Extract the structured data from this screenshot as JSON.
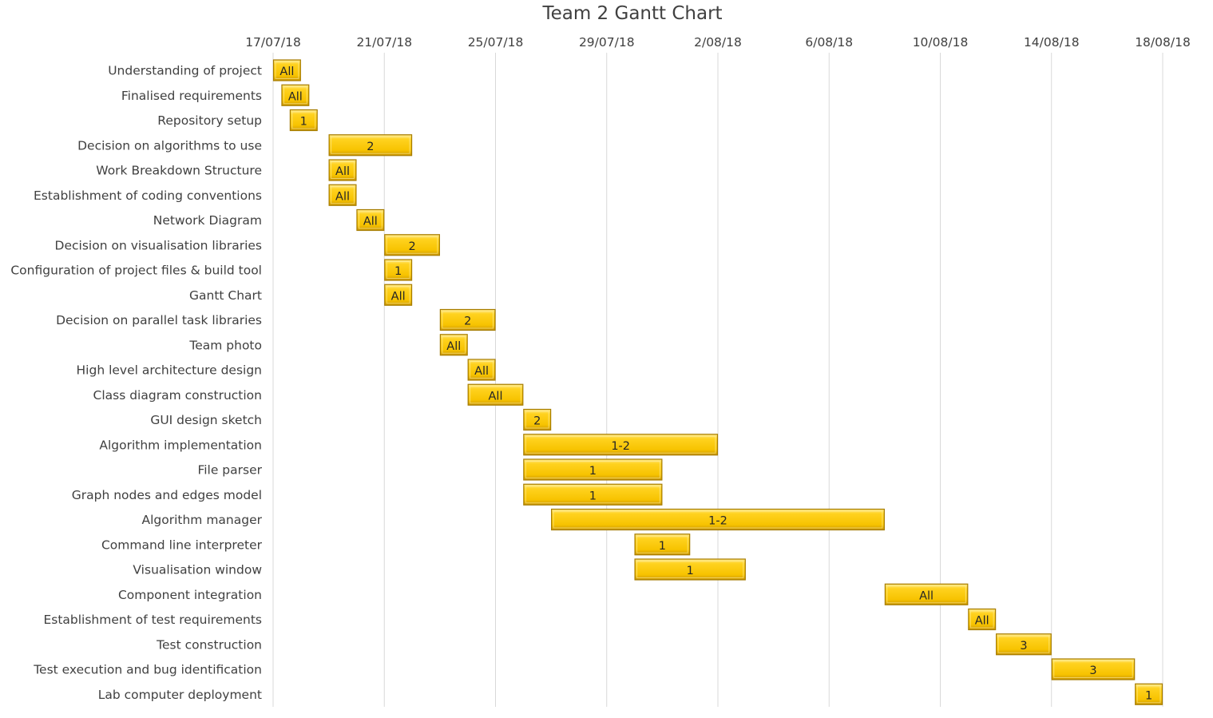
{
  "chart_data": {
    "type": "gantt",
    "title": "Team 2 Gantt Chart",
    "x_axis": {
      "type": "date",
      "min": "2018-07-17",
      "max": "2018-08-18",
      "ticks": [
        "2018-07-17",
        "2018-07-21",
        "2018-07-25",
        "2018-07-29",
        "2018-08-02",
        "2018-08-06",
        "2018-08-10",
        "2018-08-14",
        "2018-08-18"
      ],
      "tick_labels": [
        "17/07/18",
        "21/07/18",
        "25/07/18",
        "29/07/18",
        "2/08/18",
        "6/08/18",
        "10/08/18",
        "14/08/18",
        "18/08/18"
      ],
      "position": "top",
      "grid": true
    },
    "bar_color": "#FFC000",
    "tasks": [
      {
        "name": "Understanding of project",
        "start": "2018-07-17",
        "end": "2018-07-18",
        "label": "All"
      },
      {
        "name": "Finalised requirements",
        "start": "2018-07-17.3",
        "end": "2018-07-18.3",
        "label": "All"
      },
      {
        "name": "Repository setup",
        "start": "2018-07-17.6",
        "end": "2018-07-18.6",
        "label": "1"
      },
      {
        "name": "Decision on algorithms to use",
        "start": "2018-07-19",
        "end": "2018-07-22",
        "label": "2"
      },
      {
        "name": "Work Breakdown Structure",
        "start": "2018-07-19",
        "end": "2018-07-20",
        "label": "All"
      },
      {
        "name": "Establishment of coding conventions",
        "start": "2018-07-19",
        "end": "2018-07-20",
        "label": "All"
      },
      {
        "name": "Network Diagram",
        "start": "2018-07-20",
        "end": "2018-07-21",
        "label": "All"
      },
      {
        "name": "Decision on visualisation libraries",
        "start": "2018-07-21",
        "end": "2018-07-23",
        "label": "2"
      },
      {
        "name": "Configuration of project files & build tool",
        "start": "2018-07-21",
        "end": "2018-07-22",
        "label": "1"
      },
      {
        "name": "Gantt Chart",
        "start": "2018-07-21",
        "end": "2018-07-22",
        "label": "All"
      },
      {
        "name": "Decision on parallel task libraries",
        "start": "2018-07-23",
        "end": "2018-07-25",
        "label": "2"
      },
      {
        "name": "Team photo",
        "start": "2018-07-23",
        "end": "2018-07-24",
        "label": "All"
      },
      {
        "name": "High level architecture design",
        "start": "2018-07-24",
        "end": "2018-07-25",
        "label": "All"
      },
      {
        "name": "Class diagram construction",
        "start": "2018-07-24",
        "end": "2018-07-26",
        "label": "All"
      },
      {
        "name": "GUI design sketch",
        "start": "2018-07-26",
        "end": "2018-07-27",
        "label": "2"
      },
      {
        "name": "Algorithm implementation",
        "start": "2018-07-26",
        "end": "2018-08-02",
        "label": "1-2"
      },
      {
        "name": "File parser",
        "start": "2018-07-26",
        "end": "2018-07-31",
        "label": "1"
      },
      {
        "name": "Graph nodes and edges model",
        "start": "2018-07-26",
        "end": "2018-07-31",
        "label": "1"
      },
      {
        "name": "Algorithm manager",
        "start": "2018-07-27",
        "end": "2018-08-08",
        "label": "1-2"
      },
      {
        "name": "Command line interpreter",
        "start": "2018-07-30",
        "end": "2018-08-01",
        "label": "1"
      },
      {
        "name": "Visualisation window",
        "start": "2018-07-30",
        "end": "2018-08-03",
        "label": "1"
      },
      {
        "name": "Component integration",
        "start": "2018-08-08",
        "end": "2018-08-11",
        "label": "All"
      },
      {
        "name": "Establishment of test requirements",
        "start": "2018-08-11",
        "end": "2018-08-12",
        "label": "All"
      },
      {
        "name": "Test construction",
        "start": "2018-08-12",
        "end": "2018-08-14",
        "label": "3"
      },
      {
        "name": "Test execution and bug identification",
        "start": "2018-08-14",
        "end": "2018-08-17",
        "label": "3"
      },
      {
        "name": "Lab computer deployment",
        "start": "2018-08-17",
        "end": "2018-08-18",
        "label": "1"
      }
    ]
  }
}
